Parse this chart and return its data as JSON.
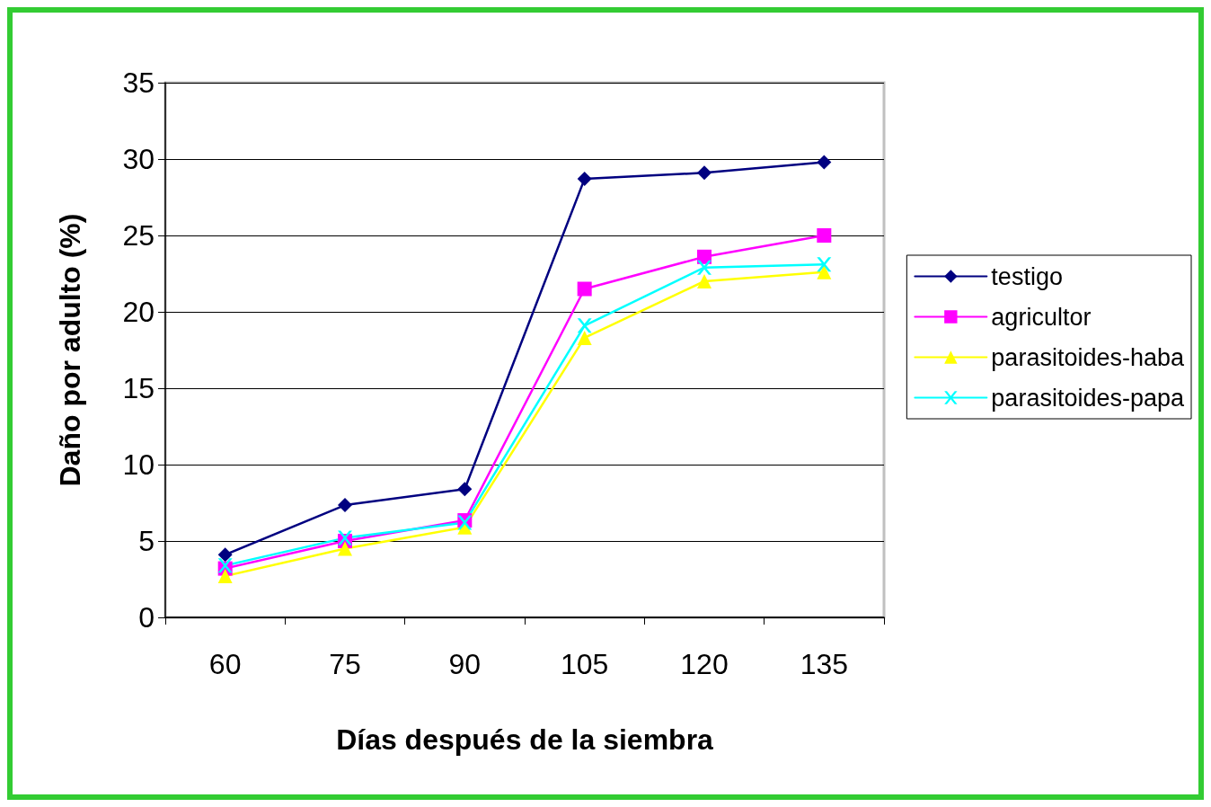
{
  "chart_data": {
    "type": "line",
    "xlabel": "Días después de la siembra",
    "ylabel": "Daño por adulto (%)",
    "categories": [
      "60",
      "75",
      "90",
      "105",
      "120",
      "135"
    ],
    "ylim": [
      0,
      35
    ],
    "yticks": [
      0,
      5,
      10,
      15,
      20,
      25,
      30,
      35
    ],
    "grid": "y",
    "legend": "right",
    "series": [
      {
        "name": "testigo",
        "color": "#000080",
        "marker": "diamond",
        "values": [
          4.1,
          7.35,
          8.4,
          28.7,
          29.1,
          29.8
        ]
      },
      {
        "name": "agricultor",
        "color": "#ff00ff",
        "marker": "square",
        "values": [
          3.2,
          5.0,
          6.35,
          21.5,
          23.6,
          25.0
        ]
      },
      {
        "name": "parasitoides-haba",
        "color": "#ffff00",
        "marker": "triangle",
        "values": [
          2.7,
          4.5,
          5.9,
          18.3,
          22.0,
          22.6
        ]
      },
      {
        "name": "parasitoides-papa",
        "color": "#00ffff",
        "marker": "cross",
        "values": [
          3.4,
          5.2,
          6.2,
          19.1,
          22.9,
          23.1
        ]
      }
    ]
  }
}
